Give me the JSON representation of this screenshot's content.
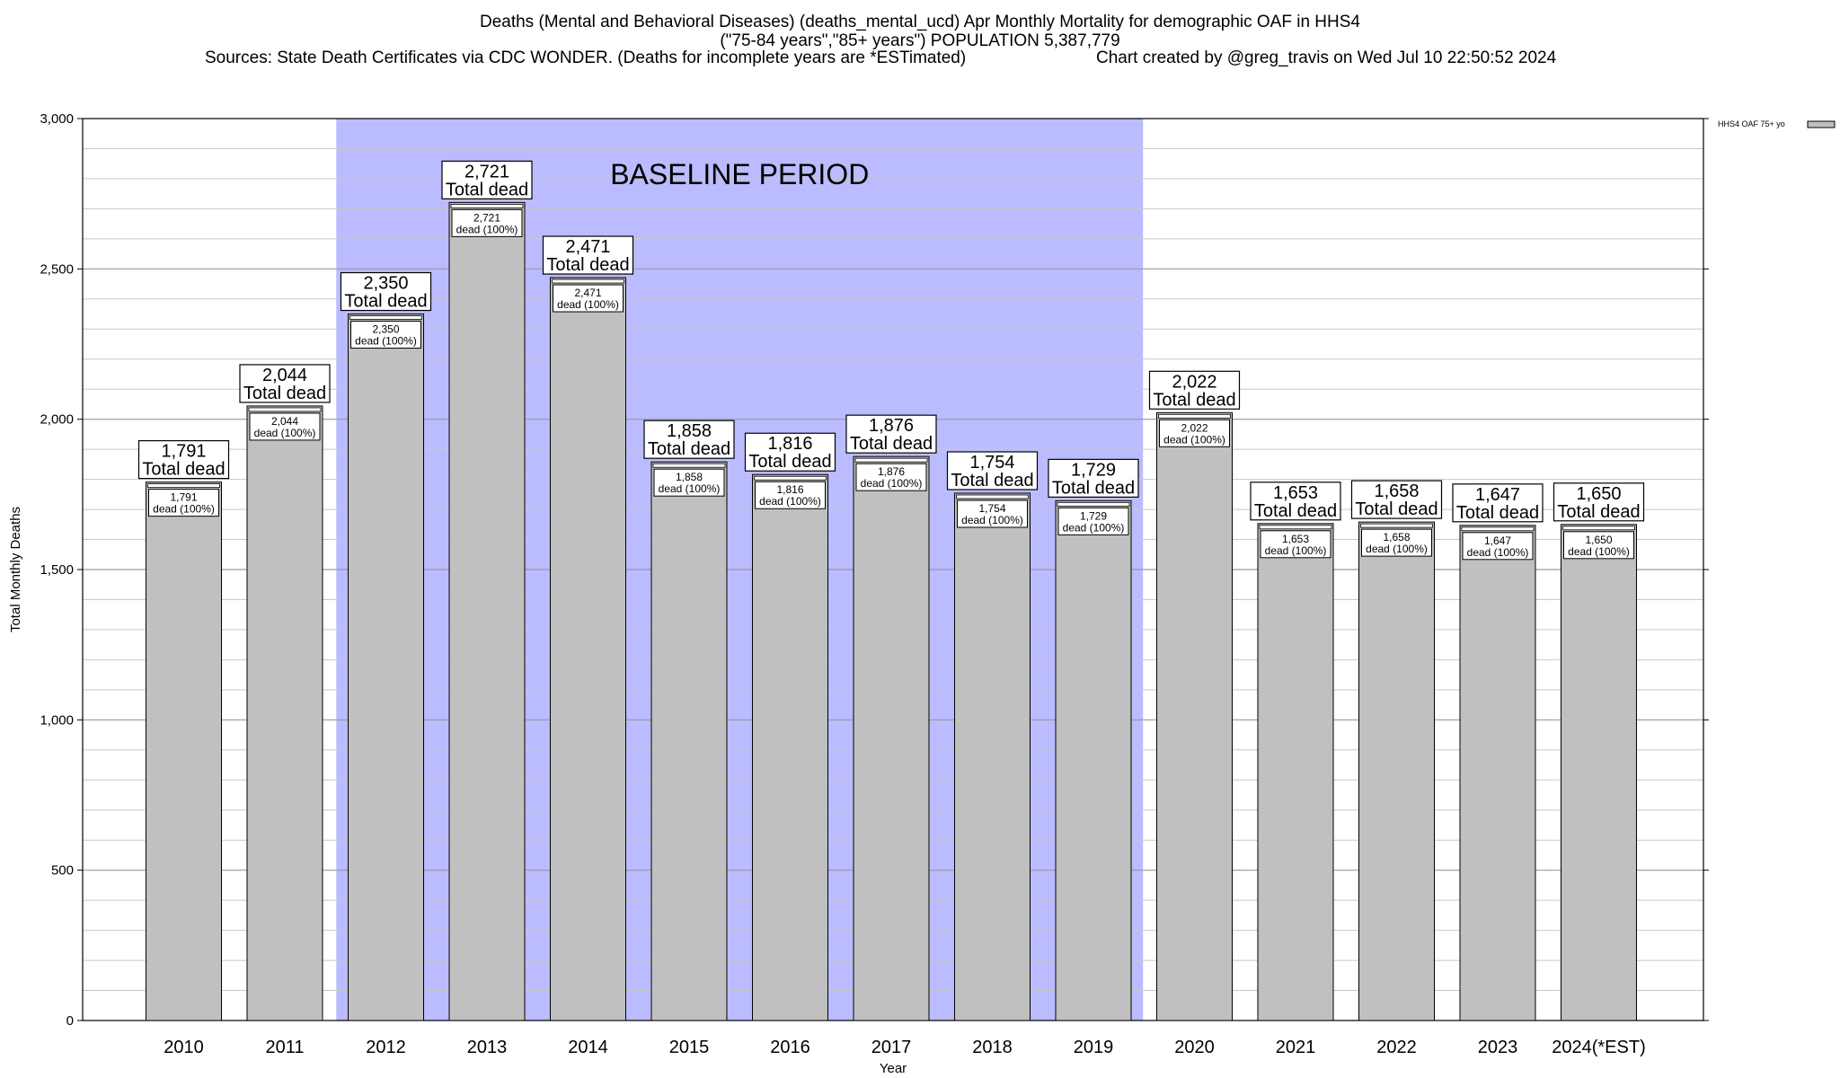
{
  "header": {
    "title": "Deaths (Mental and Behavioral Diseases) (deaths_mental_ucd) Apr Monthly Mortality for demographic OAF in HHS4",
    "population_line": "(\"75-84 years\",\"85+ years\") POPULATION 5,387,779",
    "sources": "Sources: State Death Certificates via CDC WONDER. (Deaths for incomplete years are *ESTimated)",
    "credit": "Chart created by @greg_travis on Wed Jul 10 22:50:52 2024"
  },
  "chart_data": {
    "type": "bar",
    "categories": [
      "2010",
      "2011",
      "2012",
      "2013",
      "2014",
      "2015",
      "2016",
      "2017",
      "2018",
      "2019",
      "2020",
      "2021",
      "2022",
      "2023",
      "2024(*EST)"
    ],
    "series": [
      {
        "name": "HHS4 OAF 75+ yo",
        "values": [
          1791,
          2044,
          2350,
          2721,
          2471,
          1858,
          1816,
          1876,
          1754,
          1729,
          2022,
          1653,
          1658,
          1647,
          1650
        ]
      }
    ],
    "value_labels": [
      "1,791",
      "2,044",
      "2,350",
      "2,721",
      "2,471",
      "1,858",
      "1,816",
      "1,876",
      "1,754",
      "1,729",
      "2,022",
      "1,653",
      "1,658",
      "1,647",
      "1,650"
    ],
    "total_label": "Total dead",
    "share_label": "dead (100%)",
    "xlabel": "Year",
    "ylabel": "Total Monthly Deaths",
    "ylim": [
      0,
      3000
    ],
    "yticks": [
      0,
      500,
      1000,
      1500,
      2000,
      2500,
      3000
    ],
    "ytick_labels": [
      "0",
      "500",
      "1,000",
      "1,500",
      "2,000",
      "2,500",
      "3,000"
    ],
    "grid": true,
    "baseline_period": {
      "label": "BASELINE PERIOD",
      "from": "2012",
      "to": "2019"
    },
    "legend_position": "top-right",
    "colors": {
      "bar": "#c0c0c0",
      "baseline": "#bbbbff",
      "grid": "#c8c8c8"
    }
  }
}
